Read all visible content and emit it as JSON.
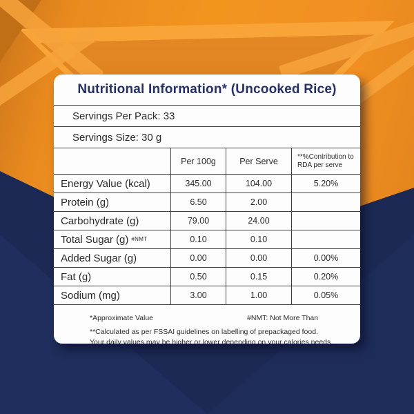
{
  "label": {
    "title": "Nutritional Information* (Uncooked Rice)",
    "servings_per_pack": "Servings Per Pack: 33",
    "servings_size": "Servings Size: 30 g"
  },
  "table": {
    "headers": {
      "nutrient": "",
      "per_100g": "Per 100g",
      "per_serve": "Per Serve",
      "rda": "**%Contribution to RDA per serve"
    },
    "rows": [
      {
        "nutrient": "Energy Value (kcal)",
        "sup": "",
        "per_100g": "345.00",
        "per_serve": "104.00",
        "rda": "5.20%"
      },
      {
        "nutrient": "Protein (g)",
        "sup": "",
        "per_100g": "6.50",
        "per_serve": "2.00",
        "rda": ""
      },
      {
        "nutrient": "Carbohydrate (g)",
        "sup": "",
        "per_100g": "79.00",
        "per_serve": "24.00",
        "rda": ""
      },
      {
        "nutrient": "Total Sugar (g)",
        "sup": "#NMT",
        "per_100g": "0.10",
        "per_serve": "0.10",
        "rda": ""
      },
      {
        "nutrient": "Added Sugar (g)",
        "sup": "",
        "per_100g": "0.00",
        "per_serve": "0.00",
        "rda": "0.00%"
      },
      {
        "nutrient": "Fat (g)",
        "sup": "",
        "per_100g": "0.50",
        "per_serve": "0.15",
        "rda": "0.20%"
      },
      {
        "nutrient": "Sodium (mg)",
        "sup": "",
        "per_100g": "3.00",
        "per_serve": "1.00",
        "rda": "0.05%"
      }
    ]
  },
  "footnotes": {
    "approximate_value": "*Approximate Value",
    "nmt": "#NMT: Not More Than",
    "fssai": "**Calculated as per FSSAI guidelines on labelling of prepackaged food.",
    "daily_values": "Your daily values may be higher or lower depending on your calories needs."
  },
  "colors": {
    "accent_orange": "#f08a1d",
    "navy_background": "#1b2954",
    "title_navy": "#252f6b",
    "table_border": "#3f3f3f",
    "card_white": "#fdfdfd"
  }
}
